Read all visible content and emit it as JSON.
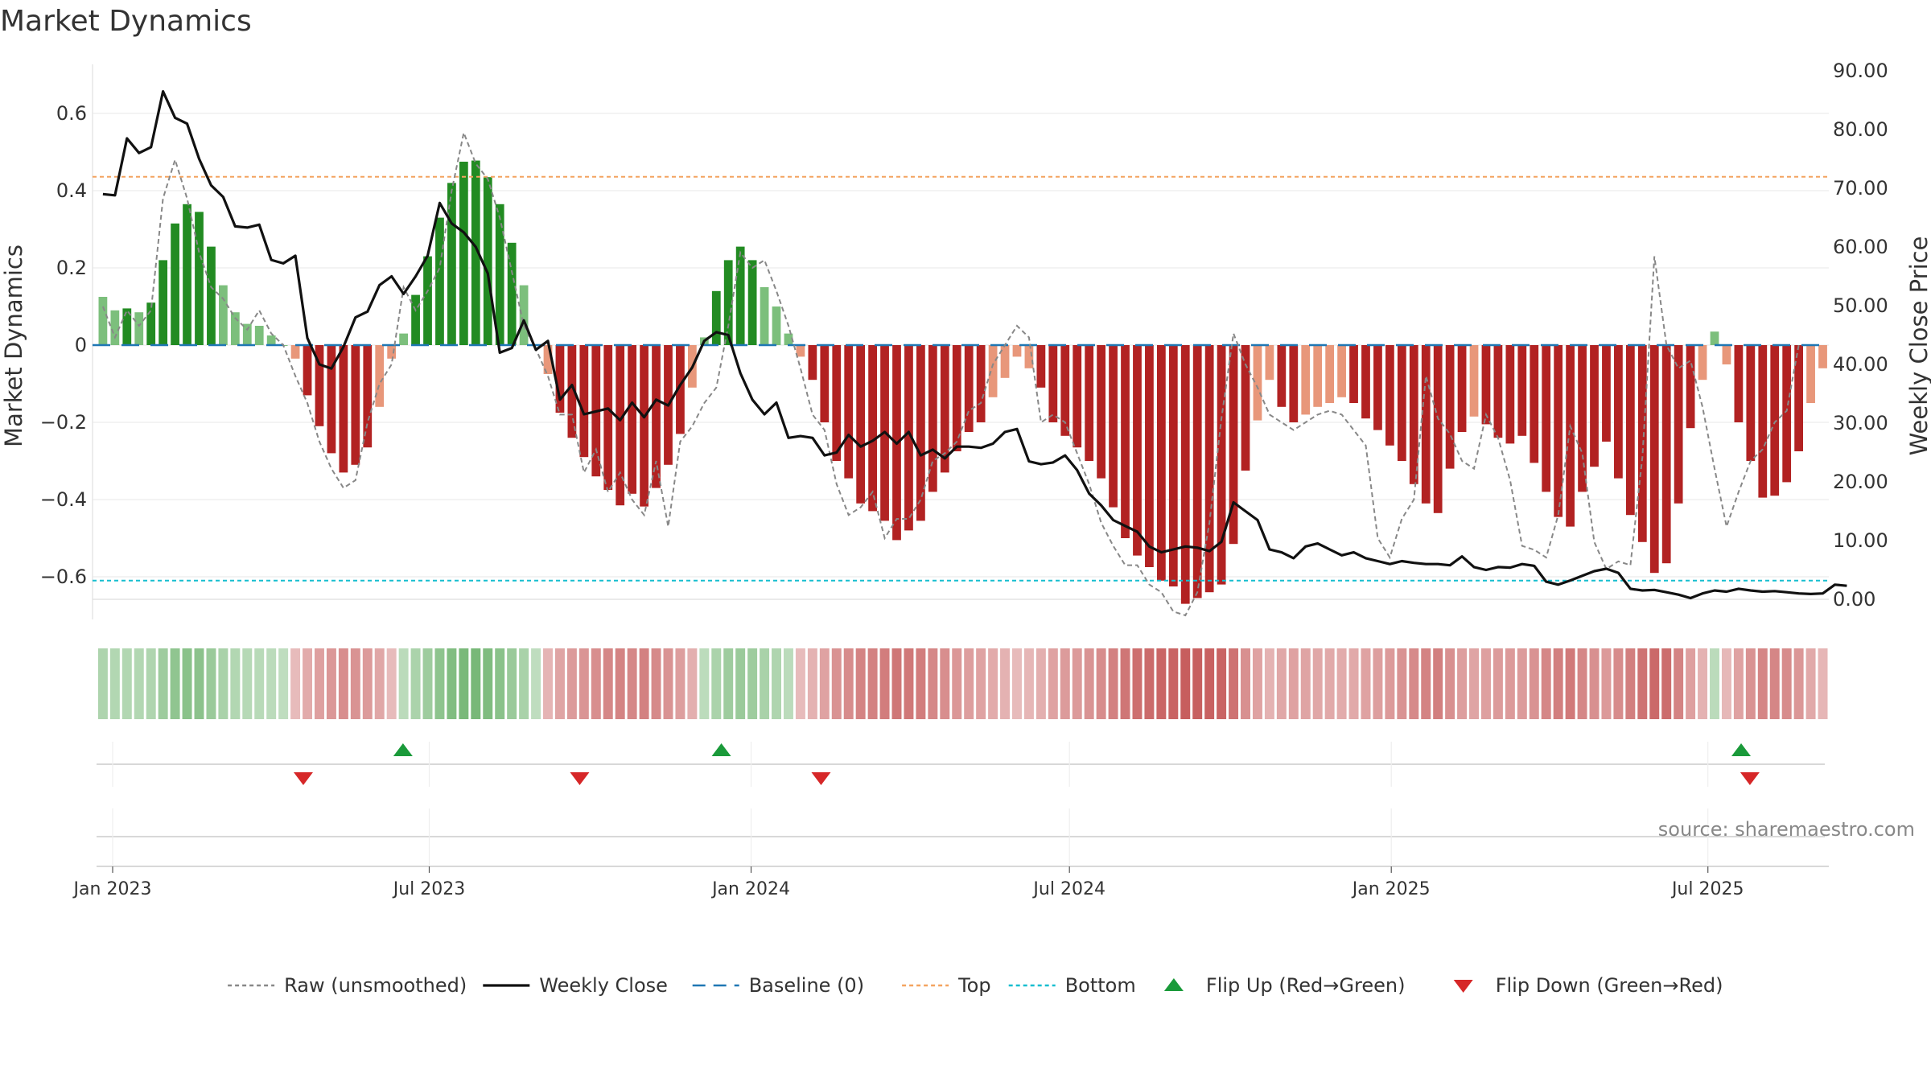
{
  "chart_data": {
    "type": "bar",
    "title": "Market Dynamics",
    "ylabel": "Market Dynamics",
    "y2label": "Weekly Close Price",
    "ylim": [
      -0.72,
      0.72
    ],
    "y2lim": [
      -3.0,
      92.0
    ],
    "y_ticks": [
      "0.6",
      "0.4",
      "0.2",
      "0",
      "−0.2",
      "−0.4",
      "−0.6"
    ],
    "y_tick_values": [
      0.6,
      0.4,
      0.2,
      0,
      -0.2,
      -0.4,
      -0.6
    ],
    "y2_ticks": [
      "90.00",
      "80.00",
      "70.00",
      "60.00",
      "50.00",
      "40.00",
      "30.00",
      "20.00",
      "10.00",
      "0.00"
    ],
    "y2_tick_values": [
      90,
      80,
      70,
      60,
      50,
      40,
      30,
      20,
      10,
      0
    ],
    "x_ticks": [
      "Jan 2023",
      "Jul 2023",
      "Jan 2024",
      "Jul 2024",
      "Jan 2025",
      "Jul 2025"
    ],
    "x_tick_dates": [
      "2023-01-01",
      "2023-07-01",
      "2024-01-01",
      "2024-07-01",
      "2025-01-01",
      "2025-07-01"
    ],
    "start_date": "2022-12-23",
    "week_count": 144,
    "top_line": 0.436,
    "bottom_line": -0.61,
    "colors": {
      "strong_up": "#228b22",
      "weak_up": "#7cbf7c",
      "strong_down": "#b22222",
      "weak_down": "#e8977a",
      "raw": "#888888",
      "close": "#111111",
      "baseline": "#1f77b4",
      "top": "#f4a460",
      "bottom": "#17becf",
      "flip_up": "#1a9a3a",
      "flip_down": "#d62728"
    },
    "flip_up_dates": [
      "2023-06-16",
      "2023-12-15",
      "2025-07-20"
    ],
    "flip_down_dates": [
      "2023-04-20",
      "2023-09-25",
      "2024-02-10",
      "2025-07-25"
    ],
    "series": [
      {
        "name": "Market Dynamics",
        "values": [
          0.125,
          0.09,
          0.095,
          0.085,
          0.11,
          0.22,
          0.315,
          0.365,
          0.345,
          0.255,
          0.155,
          0.085,
          0.055,
          0.05,
          0.025,
          0.0,
          -0.035,
          -0.13,
          -0.21,
          -0.28,
          -0.33,
          -0.31,
          -0.265,
          -0.16,
          -0.035,
          0.03,
          0.13,
          0.23,
          0.33,
          0.42,
          0.475,
          0.478,
          0.435,
          0.365,
          0.265,
          0.155,
          0.0,
          -0.075,
          -0.175,
          -0.24,
          -0.29,
          -0.34,
          -0.375,
          -0.415,
          -0.385,
          -0.418,
          -0.37,
          -0.31,
          -0.23,
          -0.11,
          0.02,
          0.14,
          0.22,
          0.255,
          0.22,
          0.15,
          0.1,
          0.03,
          -0.03,
          -0.09,
          -0.2,
          -0.3,
          -0.345,
          -0.41,
          -0.43,
          -0.455,
          -0.505,
          -0.48,
          -0.455,
          -0.38,
          -0.33,
          -0.275,
          -0.225,
          -0.2,
          -0.135,
          -0.085,
          -0.03,
          -0.06,
          -0.11,
          -0.2,
          -0.235,
          -0.265,
          -0.3,
          -0.345,
          -0.42,
          -0.5,
          -0.545,
          -0.575,
          -0.61,
          -0.625,
          -0.67,
          -0.655,
          -0.64,
          -0.62,
          -0.515,
          -0.325,
          -0.195,
          -0.09,
          -0.16,
          -0.2,
          -0.18,
          -0.16,
          -0.15,
          -0.135,
          -0.15,
          -0.19,
          -0.22,
          -0.26,
          -0.3,
          -0.36,
          -0.41,
          -0.435,
          -0.32,
          -0.225,
          -0.185,
          -0.205,
          -0.24,
          -0.255,
          -0.235,
          -0.305,
          -0.38,
          -0.445,
          -0.47,
          -0.38,
          -0.315,
          -0.25,
          -0.345,
          -0.44,
          -0.51,
          -0.59,
          -0.565,
          -0.41,
          -0.215,
          -0.09,
          0.035,
          -0.05,
          -0.2,
          -0.3,
          -0.395,
          -0.39,
          -0.355,
          -0.275,
          -0.15,
          -0.06
        ]
      },
      {
        "name": "Raw (unsmoothed)",
        "values": [
          0.1,
          0.02,
          0.09,
          0.05,
          0.09,
          0.38,
          0.48,
          0.38,
          0.24,
          0.15,
          0.12,
          0.07,
          0.04,
          0.09,
          0.03,
          0.0,
          -0.08,
          -0.15,
          -0.25,
          -0.32,
          -0.37,
          -0.35,
          -0.2,
          -0.1,
          -0.05,
          0.15,
          0.09,
          0.14,
          0.2,
          0.4,
          0.55,
          0.47,
          0.43,
          0.33,
          0.19,
          0.05,
          -0.01,
          -0.08,
          -0.18,
          -0.18,
          -0.33,
          -0.27,
          -0.38,
          -0.33,
          -0.4,
          -0.44,
          -0.3,
          -0.47,
          -0.25,
          -0.21,
          -0.15,
          -0.11,
          0.05,
          0.24,
          0.2,
          0.22,
          0.14,
          0.05,
          -0.06,
          -0.18,
          -0.22,
          -0.36,
          -0.44,
          -0.42,
          -0.38,
          -0.5,
          -0.45,
          -0.45,
          -0.4,
          -0.3,
          -0.28,
          -0.25,
          -0.17,
          -0.15,
          -0.05,
          0.0,
          0.05,
          0.02,
          -0.2,
          -0.18,
          -0.2,
          -0.28,
          -0.36,
          -0.46,
          -0.52,
          -0.57,
          -0.57,
          -0.62,
          -0.64,
          -0.69,
          -0.7,
          -0.64,
          -0.46,
          -0.19,
          0.03,
          -0.05,
          -0.11,
          -0.18,
          -0.2,
          -0.22,
          -0.2,
          -0.18,
          -0.17,
          -0.18,
          -0.22,
          -0.26,
          -0.5,
          -0.55,
          -0.45,
          -0.4,
          -0.08,
          -0.19,
          -0.23,
          -0.3,
          -0.32,
          -0.18,
          -0.24,
          -0.35,
          -0.52,
          -0.53,
          -0.55,
          -0.44,
          -0.21,
          -0.28,
          -0.51,
          -0.58,
          -0.56,
          -0.57,
          -0.29,
          0.23,
          0.0,
          -0.06,
          -0.04,
          -0.16,
          -0.32,
          -0.47,
          -0.38,
          -0.3,
          -0.27,
          -0.2,
          -0.17,
          0.0
        ]
      },
      {
        "name": "Weekly Close",
        "values": [
          69.0,
          68.8,
          78.5,
          76.0,
          77.0,
          86.5,
          82.0,
          81.0,
          75.0,
          70.5,
          68.5,
          63.5,
          63.3,
          63.8,
          57.8,
          57.2,
          58.5,
          44.5,
          40.0,
          39.3,
          43.0,
          48.0,
          49.0,
          53.5,
          55.0,
          52.0,
          55.0,
          58.5,
          67.5,
          64.0,
          62.5,
          60.0,
          55.5,
          42.0,
          42.8,
          47.5,
          42.5,
          44.0,
          34.0,
          36.5,
          31.5,
          32.0,
          32.5,
          30.5,
          33.5,
          31.0,
          34.0,
          33.0,
          36.5,
          39.5,
          44.0,
          45.5,
          45.0,
          38.5,
          34.0,
          31.5,
          33.5,
          27.5,
          27.8,
          27.5,
          24.5,
          25.0,
          28.0,
          26.0,
          27.0,
          28.5,
          26.5,
          28.5,
          24.5,
          25.5,
          24.0,
          26.0,
          26.0,
          25.8,
          26.5,
          28.5,
          29.0,
          23.5,
          23.0,
          23.3,
          24.5,
          22.0,
          18.0,
          16.0,
          13.5,
          12.5,
          11.5,
          9.0,
          8.0,
          8.5,
          9.0,
          8.8,
          8.2,
          9.8,
          16.5,
          15.0,
          13.5,
          8.5,
          8.0,
          7.0,
          9.0,
          9.5,
          8.5,
          7.5,
          8.0,
          7.0,
          6.5,
          6.0,
          6.5,
          6.2,
          6.0,
          6.0,
          5.8,
          7.3,
          5.5,
          5.0,
          5.5,
          5.4,
          6.0,
          5.7,
          3.0,
          2.5,
          3.2,
          4.0,
          4.8,
          5.2,
          4.5,
          1.8,
          1.5,
          1.6,
          1.2,
          0.8,
          0.2,
          1.0,
          1.5,
          1.3,
          1.8,
          1.5,
          1.3,
          1.4,
          1.2,
          1.0,
          0.9,
          1.0,
          2.5,
          2.3
        ]
      }
    ],
    "legend": [
      {
        "label": "Raw (unsmoothed)",
        "kind": "dotted",
        "color": "#888888"
      },
      {
        "label": "Weekly Close",
        "kind": "solid",
        "color": "#111111"
      },
      {
        "label": "Baseline (0)",
        "kind": "dashed",
        "color": "#1f77b4"
      },
      {
        "label": "Top",
        "kind": "dotted",
        "color": "#f4a460"
      },
      {
        "label": "Bottom",
        "kind": "dotted",
        "color": "#17becf"
      },
      {
        "label": "Flip Up (Red→Green)",
        "kind": "tri-up",
        "color": "#1a9a3a"
      },
      {
        "label": "Flip Down (Green→Red)",
        "kind": "tri-down",
        "color": "#d62728"
      }
    ],
    "legend_position": "bottom-center",
    "source": "source: sharemaestro.com"
  }
}
